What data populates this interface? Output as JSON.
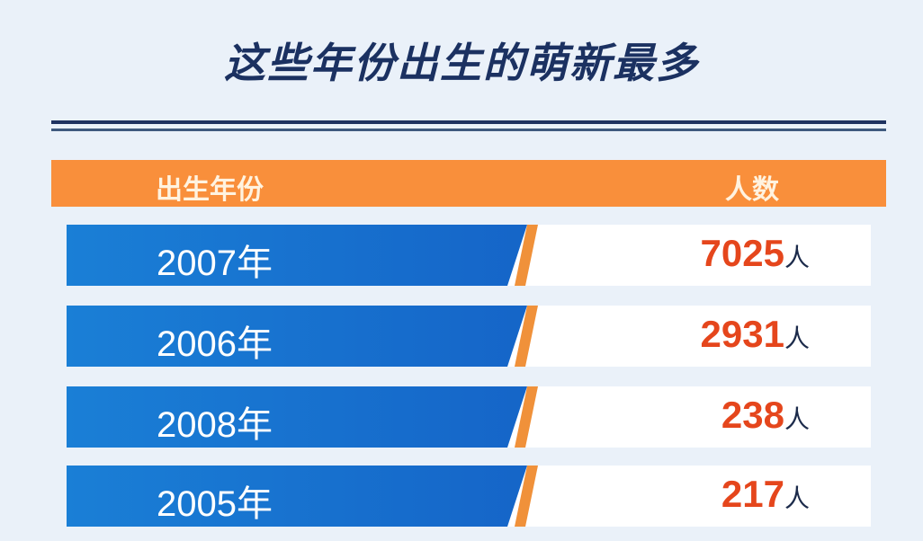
{
  "title": "这些年份出生的萌新最多",
  "chart_data": {
    "type": "table",
    "columns": [
      "出生年份",
      "人数"
    ],
    "rows": [
      {
        "year": "2007年",
        "count": "7025",
        "unit": "人"
      },
      {
        "year": "2006年",
        "count": "2931",
        "unit": "人"
      },
      {
        "year": "2008年",
        "count": "238",
        "unit": "人"
      },
      {
        "year": "2005年",
        "count": "217",
        "unit": "人"
      }
    ]
  },
  "colors": {
    "header": "#f98f3b",
    "year_band": "#1a7fd6",
    "number": "#e5461c",
    "title": "#1b3161"
  }
}
